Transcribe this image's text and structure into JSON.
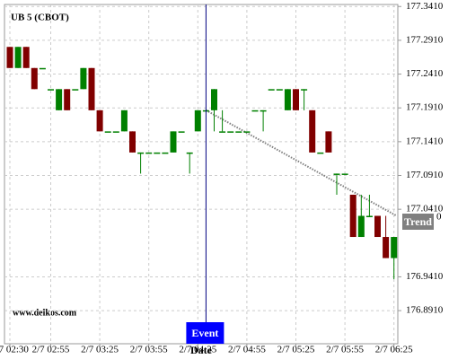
{
  "chart_data": {
    "type": "candlestick",
    "title": "UB 5 (CBOT)",
    "x_label": "Date",
    "watermark": "www.delkos.com",
    "categories": [
      "2/7 02:30",
      null,
      null,
      null,
      null,
      "2/7 02:55",
      null,
      null,
      null,
      null,
      null,
      "2/7 03:25",
      null,
      null,
      null,
      null,
      null,
      "2/7 03:55",
      null,
      null,
      null,
      null,
      null,
      "2/7 04:25",
      null,
      null,
      null,
      null,
      null,
      "2/7 04:55",
      null,
      null,
      null,
      null,
      null,
      "2/7 05:25",
      null,
      null,
      null,
      null,
      null,
      "2/7 05:55",
      null,
      null,
      null,
      null,
      null,
      "2/7 06:25"
    ],
    "open": [
      177.28125,
      177.25,
      177.28125,
      177.25,
      177.25,
      177.21875,
      177.1875,
      177.21875,
      177.21875,
      177.21875,
      177.25,
      177.1875,
      177.15625,
      177.15625,
      177.15625,
      177.15625,
      177.125,
      177.125,
      177.125,
      177.125,
      177.125,
      177.15625,
      177.125,
      177.15625,
      177.1875,
      177.1875,
      177.15625,
      177.15625,
      177.15625,
      177.15625,
      177.1875,
      177.1875,
      177.21875,
      177.21875,
      177.1875,
      177.21875,
      177.21875,
      177.1875,
      177.125,
      177.15625,
      177.09375,
      177.09375,
      177.0625,
      177.0,
      177.03125,
      177.03125,
      177.0,
      176.96875
    ],
    "high": [
      177.28125,
      177.28125,
      177.28125,
      177.25,
      177.25,
      177.21875,
      177.21875,
      177.21875,
      177.21875,
      177.25,
      177.25,
      177.1875,
      177.15625,
      177.15625,
      177.1875,
      177.15625,
      177.125,
      177.125,
      177.125,
      177.125,
      177.15625,
      177.15625,
      177.125,
      177.1875,
      177.1875,
      177.21875,
      177.1875,
      177.15625,
      177.15625,
      177.15625,
      177.1875,
      177.1875,
      177.21875,
      177.21875,
      177.21875,
      177.21875,
      177.21875,
      177.1875,
      177.125,
      177.15625,
      177.09375,
      177.09375,
      177.0625,
      177.0625,
      177.0625,
      177.03125,
      177.03125,
      177.0
    ],
    "low": [
      177.25,
      177.25,
      177.25,
      177.21875,
      177.25,
      177.21875,
      177.1875,
      177.1875,
      177.21875,
      177.21875,
      177.1875,
      177.15625,
      177.15625,
      177.15625,
      177.15625,
      177.125,
      177.09375,
      177.125,
      177.125,
      177.125,
      177.125,
      177.15625,
      177.09375,
      177.15625,
      177.1875,
      177.15625,
      177.15625,
      177.15625,
      177.15625,
      177.15625,
      177.1875,
      177.15625,
      177.21875,
      177.21875,
      177.1875,
      177.1875,
      177.1875,
      177.125,
      177.125,
      177.125,
      177.0625,
      177.09375,
      177.0,
      177.0,
      177.03125,
      177.0,
      176.96875,
      176.9375
    ],
    "close": [
      177.25,
      177.28125,
      177.25,
      177.21875,
      177.25,
      177.21875,
      177.21875,
      177.1875,
      177.21875,
      177.25,
      177.1875,
      177.15625,
      177.15625,
      177.15625,
      177.1875,
      177.125,
      177.125,
      177.125,
      177.125,
      177.125,
      177.15625,
      177.15625,
      177.125,
      177.1875,
      177.1875,
      177.21875,
      177.15625,
      177.15625,
      177.15625,
      177.15625,
      177.1875,
      177.1875,
      177.21875,
      177.21875,
      177.21875,
      177.1875,
      177.21875,
      177.125,
      177.125,
      177.125,
      177.09375,
      177.09375,
      177.0,
      177.03125,
      177.03125,
      177.0,
      176.96875,
      177.0
    ],
    "up_color": "#008000",
    "down_color": "#800000",
    "ylim": [
      176.842,
      177.344
    ],
    "yticks": [
      {
        "value": 177.341,
        "label": "177.3410"
      },
      {
        "value": 177.291,
        "label": "177.2910"
      },
      {
        "value": 177.241,
        "label": "177.2410"
      },
      {
        "value": 177.191,
        "label": "177.1910"
      },
      {
        "value": 177.141,
        "label": "177.1410"
      },
      {
        "value": 177.091,
        "label": "177.0910"
      },
      {
        "value": 177.041,
        "label": "177.0410"
      },
      {
        "value": 176.941,
        "label": "176.9410"
      },
      {
        "value": 176.891,
        "label": "176.8910"
      }
    ],
    "grid": true,
    "event": {
      "label": "Event",
      "color": "#0000ff"
    },
    "trend": {
      "label": "Trend",
      "value_label": "0",
      "start": 177.1875,
      "end": 177.03125,
      "color": "#808080"
    }
  }
}
